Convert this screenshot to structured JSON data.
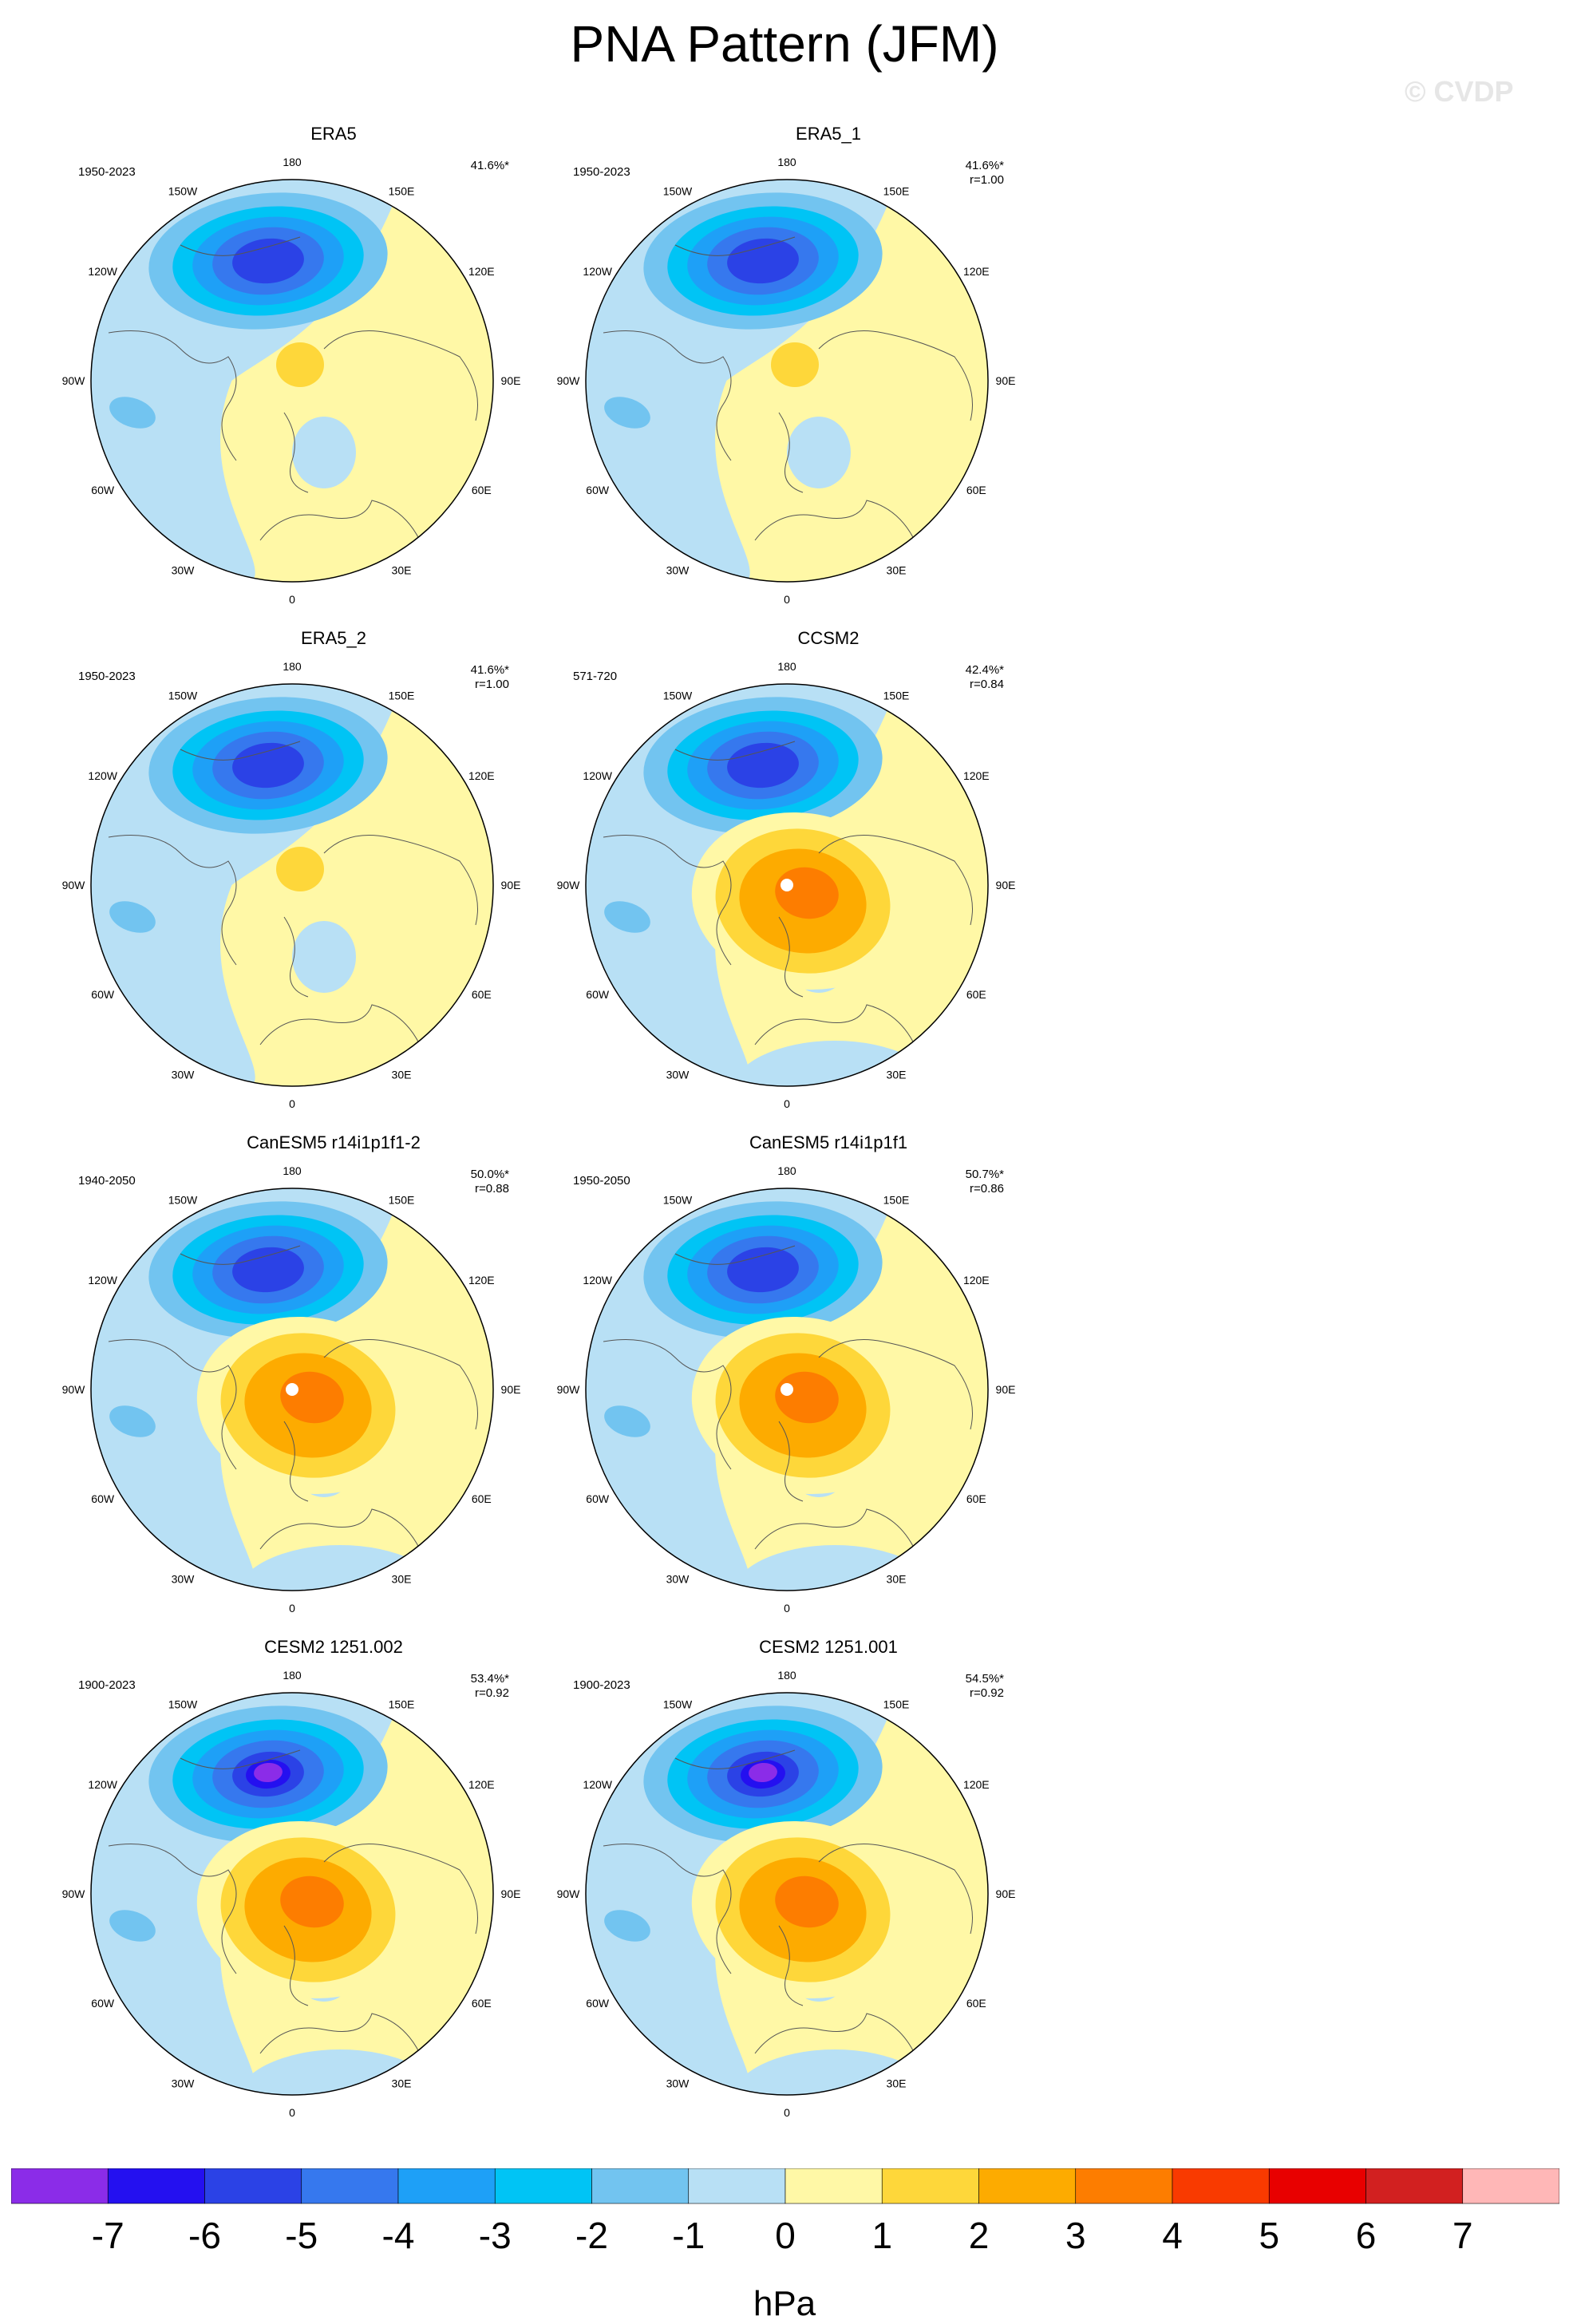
{
  "title": "PNA Pattern (JFM)",
  "watermark": "© CVDP",
  "longitude_labels": [
    "180",
    "150E",
    "120E",
    "90E",
    "60E",
    "30E",
    "0",
    "30W",
    "60W",
    "90W",
    "120W",
    "150W"
  ],
  "panels": [
    {
      "name": "ERA5",
      "period": "1950-2023",
      "pct": "41.6%*",
      "r": ""
    },
    {
      "name": "ERA5_1",
      "period": "1950-2023",
      "pct": "41.6%*",
      "r": "r=1.00"
    },
    {
      "name": "ERA5_2",
      "period": "1950-2023",
      "pct": "41.6%*",
      "r": "r=1.00"
    },
    {
      "name": "CCSM2",
      "period": "571-720",
      "pct": "42.4%*",
      "r": "r=0.84"
    },
    {
      "name": "CanESM5 r14i1p1f1-2",
      "period": "1940-2050",
      "pct": "50.0%*",
      "r": "r=0.88"
    },
    {
      "name": "CanESM5 r14i1p1f1",
      "period": "1950-2050",
      "pct": "50.7%*",
      "r": "r=0.86"
    },
    {
      "name": "CESM2 1251.002",
      "period": "1900-2023",
      "pct": "53.4%*",
      "r": "r=0.92"
    },
    {
      "name": "CESM2 1251.001",
      "period": "1900-2023",
      "pct": "54.5%*",
      "r": "r=0.92"
    }
  ],
  "colorbar": {
    "unit": "hPa",
    "ticks": [
      "-7",
      "-6",
      "-5",
      "-4",
      "-3",
      "-2",
      "-1",
      "0",
      "1",
      "2",
      "3",
      "4",
      "5",
      "6",
      "7"
    ],
    "colors": [
      "#8b2ce8",
      "#2410f0",
      "#2b42e6",
      "#3678ee",
      "#1ea0f7",
      "#00c4f5",
      "#72c4f0",
      "#b8e0f5",
      "#fff8a6",
      "#fed73a",
      "#fdab00",
      "#fd7d00",
      "#f93a00",
      "#e80000",
      "#d22020",
      "#ffb7b7"
    ]
  }
}
